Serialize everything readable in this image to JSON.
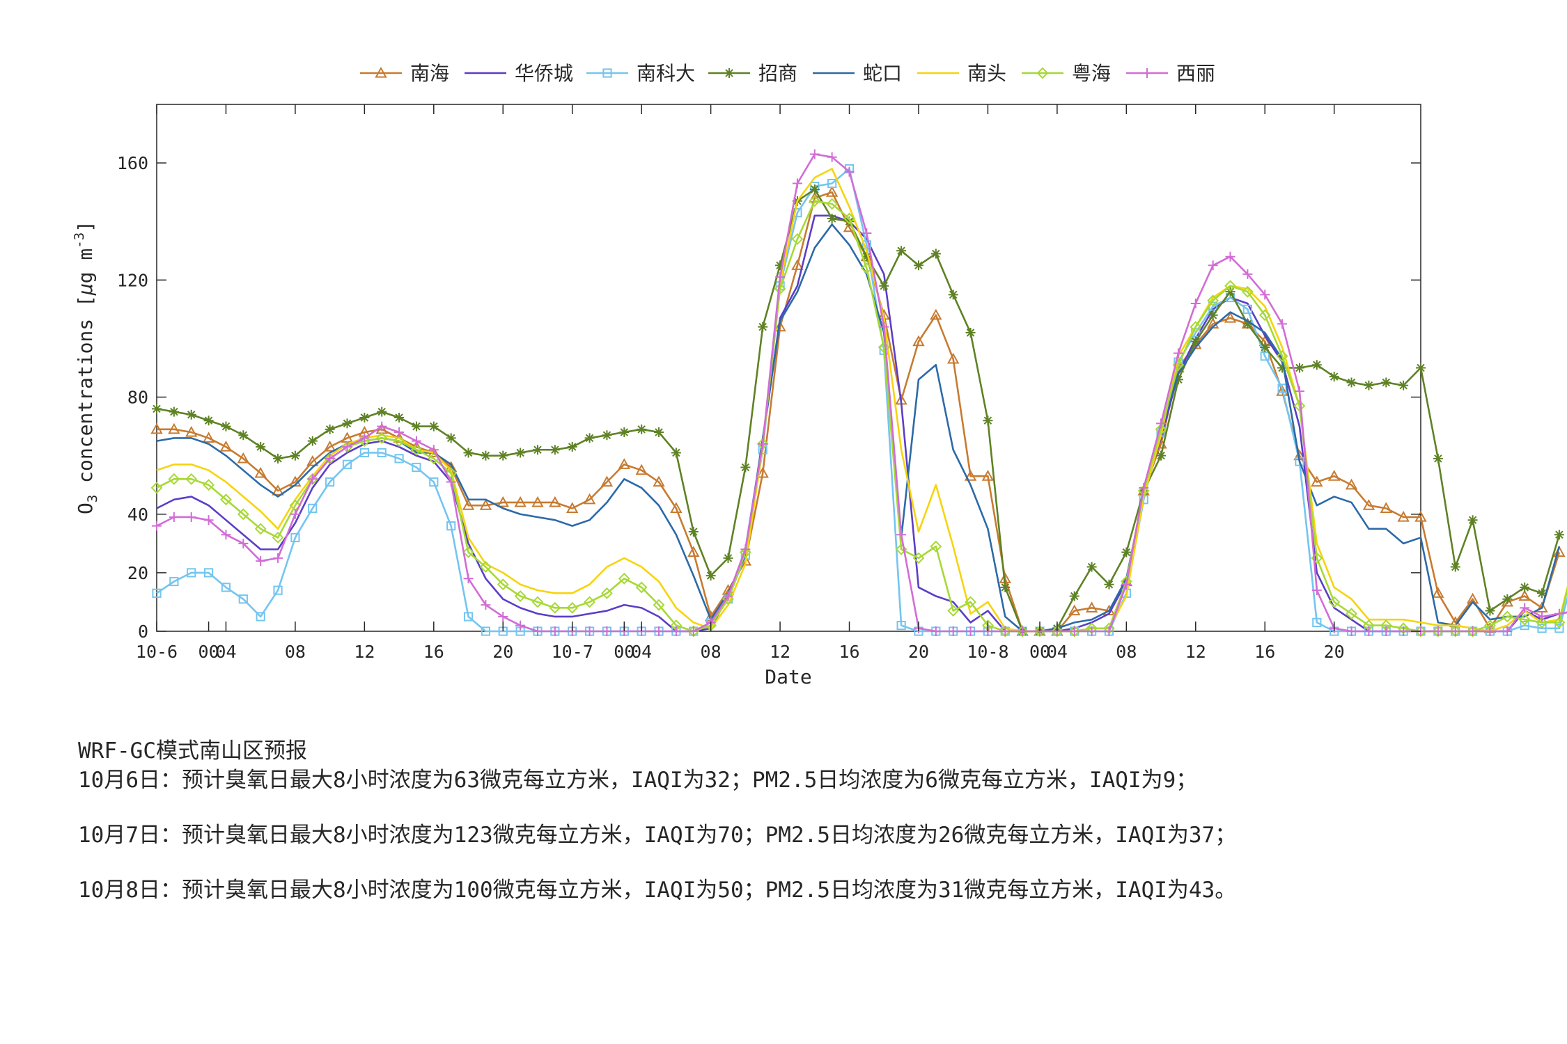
{
  "chart_data": {
    "type": "line",
    "title": "",
    "xlabel": "Date",
    "ylabel": "O₃ concentrations [µg m⁻³]",
    "ylabel_parts": {
      "base": "O",
      "base_sub": "3",
      "mid": " concentrations [",
      "mu": "µ",
      "g": "g m",
      "sup": "-3",
      "end": "]"
    },
    "ylim": [
      0,
      180
    ],
    "yticks": [
      0,
      20,
      40,
      80,
      120,
      160
    ],
    "x_unit": "hour",
    "x_start": "10-6 00:00",
    "xlim": [
      0,
      73
    ],
    "xticks": [
      {
        "x": 0,
        "label": "10-6"
      },
      {
        "x": 4,
        "label": "04"
      },
      {
        "x": 8,
        "label": "08"
      },
      {
        "x": 12,
        "label": "12"
      },
      {
        "x": 16,
        "label": "16"
      },
      {
        "x": 20,
        "label": "20"
      },
      {
        "x": 24,
        "label": "10-7"
      },
      {
        "x": 28,
        "label": "04"
      },
      {
        "x": 32,
        "label": "08"
      },
      {
        "x": 36,
        "label": "12"
      },
      {
        "x": 40,
        "label": "16"
      },
      {
        "x": 44,
        "label": "20"
      },
      {
        "x": 48,
        "label": "10-8"
      },
      {
        "x": 52,
        "label": "04"
      },
      {
        "x": 56,
        "label": "08"
      },
      {
        "x": 60,
        "label": "12"
      },
      {
        "x": 64,
        "label": "16"
      },
      {
        "x": 68,
        "label": "20"
      }
    ],
    "extra_tick_labels": [
      {
        "x": 3,
        "label": "00"
      },
      {
        "x": 27,
        "label": "00"
      },
      {
        "x": 51,
        "label": "00"
      }
    ],
    "grid": false,
    "legend": "top, horizontal, outside",
    "series": [
      {
        "name": "南海",
        "color": "#C77B30",
        "marker": "triangle",
        "values": [
          69,
          69,
          68,
          66,
          63,
          59,
          54,
          48,
          51,
          58,
          63,
          66,
          68,
          69,
          66,
          63,
          61,
          56,
          43,
          43,
          44,
          44,
          44,
          44,
          42,
          45,
          51,
          57,
          55,
          51,
          42,
          27,
          5,
          14,
          24,
          54,
          104,
          125,
          148,
          150,
          138,
          128,
          108,
          79,
          99,
          108,
          93,
          53,
          53,
          18,
          0,
          0,
          0,
          7,
          8,
          7,
          17,
          48,
          64,
          90,
          98,
          105,
          107,
          105,
          99,
          82,
          60,
          51,
          53,
          50,
          43,
          42,
          39,
          39,
          13,
          3,
          11,
          1,
          10,
          12,
          8,
          27
        ]
      },
      {
        "name": "华侨城",
        "color": "#5B3EC7",
        "marker": "none",
        "values": [
          42,
          45,
          46,
          43,
          38,
          33,
          28,
          28,
          37,
          49,
          57,
          61,
          64,
          65,
          63,
          60,
          58,
          51,
          30,
          18,
          11,
          8,
          6,
          5,
          5,
          6,
          7,
          9,
          8,
          5,
          0,
          0,
          1,
          12,
          28,
          65,
          107,
          118,
          142,
          142,
          140,
          134,
          122,
          78,
          15,
          12,
          10,
          3,
          7,
          0,
          0,
          0,
          0,
          1,
          3,
          6,
          17,
          47,
          66,
          88,
          100,
          110,
          114,
          112,
          101,
          92,
          70,
          20,
          8,
          4,
          0,
          0,
          0,
          0,
          0,
          0,
          0,
          0,
          0,
          7,
          4,
          6,
          7,
          27
        ]
      },
      {
        "name": "南科大",
        "color": "#74C5F0",
        "marker": "square",
        "values": [
          13,
          17,
          20,
          20,
          15,
          11,
          5,
          14,
          32,
          42,
          51,
          57,
          61,
          61,
          59,
          56,
          51,
          36,
          5,
          0,
          0,
          0,
          0,
          0,
          0,
          0,
          0,
          0,
          0,
          0,
          0,
          0,
          3,
          11,
          26,
          62,
          118,
          143,
          152,
          153,
          158,
          132,
          96,
          2,
          0,
          0,
          0,
          0,
          0,
          0,
          0,
          0,
          0,
          0,
          0,
          0,
          13,
          45,
          68,
          92,
          102,
          111,
          114,
          110,
          94,
          83,
          58,
          3,
          0,
          0,
          0,
          0,
          0,
          0,
          0,
          0,
          0,
          0,
          0,
          2,
          1,
          1,
          23
        ]
      },
      {
        "name": "招商",
        "color": "#5E8224",
        "marker": "asterisk",
        "values": [
          76,
          75,
          74,
          72,
          70,
          67,
          63,
          59,
          60,
          65,
          69,
          71,
          73,
          75,
          73,
          70,
          70,
          66,
          61,
          60,
          60,
          61,
          62,
          62,
          63,
          66,
          67,
          68,
          69,
          68,
          61,
          34,
          19,
          25,
          56,
          104,
          125,
          147,
          151,
          141,
          140,
          128,
          118,
          130,
          125,
          129,
          115,
          102,
          72,
          15,
          0,
          0,
          1,
          12,
          22,
          16,
          27,
          48,
          60,
          86,
          99,
          108,
          116,
          105,
          97,
          90,
          90,
          91,
          87,
          85,
          84,
          85,
          84,
          90,
          59,
          22,
          38,
          7,
          11,
          15,
          13,
          33
        ]
      },
      {
        "name": "蛇口",
        "color": "#2C6AA8",
        "marker": "none",
        "values": [
          65,
          66,
          66,
          64,
          60,
          55,
          50,
          46,
          50,
          56,
          61,
          64,
          65,
          66,
          65,
          61,
          61,
          57,
          45,
          45,
          42,
          40,
          39,
          38,
          36,
          38,
          44,
          52,
          49,
          43,
          33,
          19,
          4,
          13,
          26,
          66,
          106,
          116,
          131,
          139,
          132,
          122,
          102,
          32,
          86,
          91,
          62,
          50,
          35,
          5,
          0,
          0,
          1,
          3,
          4,
          7,
          18,
          47,
          69,
          88,
          97,
          104,
          109,
          106,
          102,
          93,
          58,
          43,
          46,
          44,
          35,
          35,
          30,
          32,
          3,
          2,
          10,
          4,
          5,
          5,
          8,
          29
        ]
      },
      {
        "name": "南头",
        "color": "#F6D40E",
        "marker": "none",
        "values": [
          55,
          57,
          57,
          55,
          51,
          46,
          41,
          35,
          45,
          53,
          60,
          64,
          66,
          67,
          66,
          62,
          61,
          55,
          32,
          23,
          20,
          16,
          14,
          13,
          13,
          16,
          22,
          25,
          22,
          17,
          8,
          3,
          1,
          9,
          23,
          63,
          119,
          147,
          155,
          158,
          145,
          130,
          107,
          62,
          34,
          50,
          29,
          6,
          10,
          1,
          0,
          0,
          0,
          0,
          1,
          1,
          12,
          46,
          67,
          94,
          104,
          114,
          118,
          117,
          111,
          97,
          77,
          30,
          15,
          11,
          4,
          4,
          4,
          3,
          2,
          2,
          1,
          0,
          2,
          7,
          3,
          4,
          27
        ]
      },
      {
        "name": "粤海",
        "color": "#A6D934",
        "marker": "diamond",
        "values": [
          49,
          52,
          52,
          50,
          45,
          40,
          35,
          32,
          43,
          52,
          59,
          63,
          65,
          66,
          65,
          62,
          59,
          54,
          27,
          22,
          16,
          12,
          10,
          8,
          8,
          10,
          13,
          18,
          15,
          9,
          2,
          0,
          2,
          11,
          27,
          64,
          117,
          134,
          147,
          146,
          141,
          124,
          97,
          28,
          25,
          29,
          7,
          10,
          2,
          0,
          0,
          0,
          0,
          0,
          1,
          1,
          17,
          48,
          69,
          91,
          104,
          113,
          118,
          116,
          108,
          94,
          77,
          25,
          10,
          6,
          2,
          2,
          1,
          0,
          0,
          0,
          0,
          2,
          5,
          4,
          3,
          3,
          27
        ]
      },
      {
        "name": "西丽",
        "color": "#D26CD6",
        "marker": "plus",
        "values": [
          36,
          39,
          39,
          38,
          33,
          30,
          24,
          25,
          40,
          52,
          59,
          63,
          66,
          70,
          68,
          65,
          62,
          51,
          18,
          9,
          5,
          2,
          0,
          0,
          0,
          0,
          0,
          0,
          0,
          0,
          0,
          0,
          3,
          12,
          28,
          64,
          121,
          153,
          163,
          162,
          157,
          136,
          104,
          33,
          1,
          0,
          0,
          0,
          0,
          0,
          0,
          0,
          0,
          0,
          0,
          0,
          16,
          49,
          71,
          95,
          112,
          125,
          128,
          122,
          115,
          105,
          82,
          14,
          1,
          0,
          0,
          0,
          0,
          0,
          0,
          0,
          0,
          0,
          0,
          8,
          5,
          6,
          7,
          28
        ]
      }
    ]
  },
  "forecast": {
    "title": "WRF-GC模式南山区预报",
    "lines": [
      "10月6日：预计臭氧日最大8小时浓度为63微克每立方米，IAQI为32；PM2.5日均浓度为6微克每立方米，IAQI为9；",
      "10月7日：预计臭氧日最大8小时浓度为123微克每立方米，IAQI为70；PM2.5日均浓度为26微克每立方米，IAQI为37；",
      "10月8日：预计臭氧日最大8小时浓度为100微克每立方米，IAQI为50；PM2.5日均浓度为31微克每立方米，IAQI为43。"
    ]
  }
}
